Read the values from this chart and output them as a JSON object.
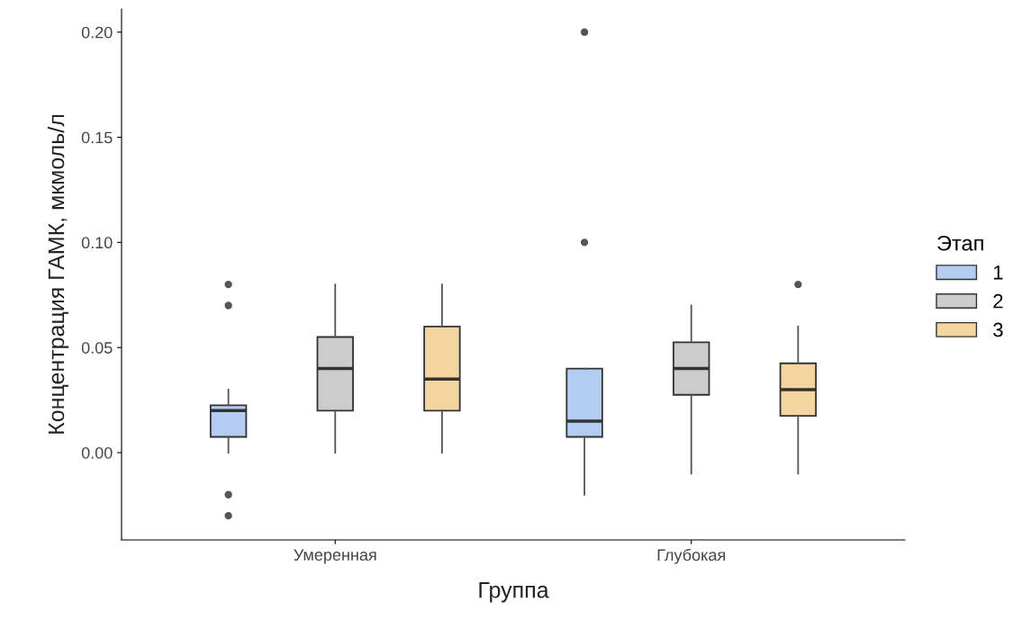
{
  "chart_data": {
    "type": "box",
    "xlabel": "Группа",
    "ylabel": "Концентрация ГАМК, мкмоль/л",
    "legend_title": "Этап",
    "categories": [
      "Умеренная",
      "Глубокая"
    ],
    "ylim": [
      -0.0415,
      0.211
    ],
    "yticks": [
      {
        "value": 0,
        "label": "0.00"
      },
      {
        "value": 0.05,
        "label": "0.05"
      },
      {
        "value": 0.1,
        "label": "0.10"
      },
      {
        "value": 0.15,
        "label": "0.15"
      },
      {
        "value": 0.2,
        "label": "0.20"
      }
    ],
    "grid": false,
    "legend": "right",
    "series": [
      {
        "name": "1",
        "color": "#b3cdf2",
        "boxes": [
          {
            "low": 0,
            "q1": 0.0075,
            "median": 0.02,
            "q3": 0.0225,
            "high": 0.03,
            "outliers": [
              0.08,
              0.07,
              -0.02,
              -0.03
            ]
          },
          {
            "low": -0.02,
            "q1": 0.0075,
            "median": 0.015,
            "q3": 0.04,
            "high": 0.04,
            "outliers": [
              0.1,
              0.2
            ]
          }
        ]
      },
      {
        "name": "2",
        "color": "#cccccc",
        "boxes": [
          {
            "low": 0,
            "q1": 0.02,
            "median": 0.04,
            "q3": 0.055,
            "high": 0.08
          },
          {
            "low": -0.01,
            "q1": 0.0275,
            "median": 0.04,
            "q3": 0.0525,
            "high": 0.07
          }
        ]
      },
      {
        "name": "3",
        "color": "#f2d59f",
        "boxes": [
          {
            "low": 0,
            "q1": 0.02,
            "median": 0.035,
            "q3": 0.06,
            "high": 0.08
          },
          {
            "low": -0.01,
            "q1": 0.0175,
            "median": 0.03,
            "q3": 0.0425,
            "high": 0.06,
            "outliers": [
              0.08
            ]
          }
        ]
      }
    ]
  }
}
